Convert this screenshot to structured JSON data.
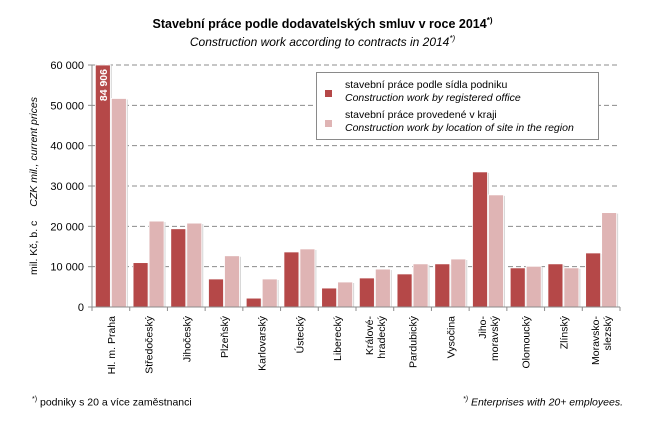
{
  "chart_data": {
    "type": "bar",
    "title": "Stavební práce podle dodavatelských smluv v roce 2014",
    "title_marker": "*)",
    "subtitle": "Construction work according to contracts in 2014",
    "subtitle_marker": "*)",
    "ylabel_cz": "mil. Kč, b. c",
    "ylabel_en": "CZK mil., current prices",
    "ylim": [
      0,
      60000
    ],
    "yticks": [
      0,
      10000,
      20000,
      30000,
      40000,
      50000,
      60000
    ],
    "ytick_labels": [
      "0",
      "10 000",
      "20 000",
      "30 000",
      "40 000",
      "50 000",
      "60 000"
    ],
    "grid": true,
    "categories": [
      [
        "Hl. m. Praha"
      ],
      [
        "Středočeský"
      ],
      [
        "Jihočeský"
      ],
      [
        "Plzeňský"
      ],
      [
        "Karlovarský"
      ],
      [
        "Ústecký"
      ],
      [
        "Liberecký"
      ],
      [
        "Králové-",
        "hradecký"
      ],
      [
        "Pardubický"
      ],
      [
        "Vysočina"
      ],
      [
        "Jiho-",
        "moravský"
      ],
      [
        "Olomoucký"
      ],
      [
        "Zlínský"
      ],
      [
        "Moravsko-",
        "slezský"
      ]
    ],
    "series": [
      {
        "name": "stavební práce podle sídla podniku",
        "name_en": "Construction work by registered office",
        "color": "#b54848",
        "values": [
          84906,
          11000,
          19400,
          6950,
          2200,
          13650,
          4700,
          7200,
          8200,
          10700,
          33500,
          9700,
          10700,
          13400
        ]
      },
      {
        "name": "stavební práce provedené v kraji",
        "name_en": "Construction work by location of site in the region",
        "color": "#dfb4b4",
        "values": [
          51700,
          21300,
          20800,
          12700,
          6950,
          14400,
          6200,
          9400,
          10700,
          11900,
          27800,
          10100,
          9700,
          23400
        ]
      }
    ],
    "annotations": [
      {
        "category": "Hl. m. Praha",
        "series": 0,
        "text": "84 906",
        "note": "value exceeds axis maximum"
      }
    ],
    "legend_position": "top-right"
  },
  "footnotes": {
    "left_marker": "*)",
    "left": "podniky s 20 a více zaměstnanci",
    "right_marker": "*)",
    "right": "Enterprises with 20+ employees."
  }
}
